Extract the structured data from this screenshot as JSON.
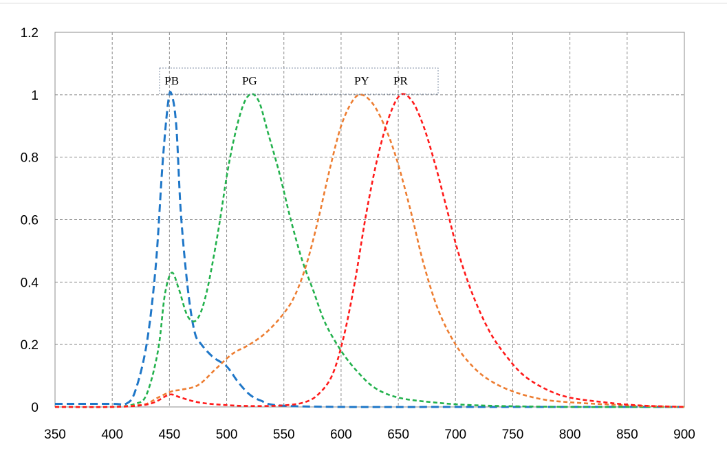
{
  "chart_data": {
    "type": "line",
    "title": "",
    "xlabel": "",
    "ylabel": "",
    "xlim": [
      350,
      900
    ],
    "ylim": [
      0,
      1.2
    ],
    "grid": true,
    "legend": "top (labels in a box above the peaks)",
    "x_ticks": [
      "350",
      "400",
      "450",
      "500",
      "550",
      "600",
      "650",
      "700",
      "750",
      "800",
      "850",
      "900"
    ],
    "y_ticks": [
      "0",
      "0.2",
      "0.4",
      "0.6",
      "0.8",
      "1",
      "1.2"
    ],
    "series": [
      {
        "name": "PB",
        "color": "#1f77c8",
        "points": [
          [
            350,
            0.01
          ],
          [
            400,
            0.01
          ],
          [
            412,
            0.01
          ],
          [
            420,
            0.05
          ],
          [
            430,
            0.2
          ],
          [
            438,
            0.45
          ],
          [
            444,
            0.78
          ],
          [
            449,
            0.98
          ],
          [
            452,
            1.0
          ],
          [
            456,
            0.9
          ],
          [
            460,
            0.62
          ],
          [
            466,
            0.38
          ],
          [
            472,
            0.24
          ],
          [
            478,
            0.2
          ],
          [
            488,
            0.16
          ],
          [
            500,
            0.13
          ],
          [
            510,
            0.08
          ],
          [
            520,
            0.04
          ],
          [
            530,
            0.02
          ],
          [
            545,
            0.005
          ],
          [
            600,
            0.0
          ],
          [
            700,
            0.0
          ],
          [
            800,
            0.0
          ],
          [
            900,
            0.0
          ]
        ]
      },
      {
        "name": "PG",
        "color": "#22b14c",
        "points": [
          [
            350,
            0.0
          ],
          [
            400,
            0.0
          ],
          [
            420,
            0.01
          ],
          [
            430,
            0.04
          ],
          [
            440,
            0.18
          ],
          [
            446,
            0.36
          ],
          [
            452,
            0.43
          ],
          [
            458,
            0.38
          ],
          [
            466,
            0.29
          ],
          [
            474,
            0.28
          ],
          [
            482,
            0.36
          ],
          [
            492,
            0.55
          ],
          [
            502,
            0.78
          ],
          [
            512,
            0.94
          ],
          [
            520,
            1.0
          ],
          [
            528,
            0.98
          ],
          [
            536,
            0.88
          ],
          [
            546,
            0.75
          ],
          [
            556,
            0.6
          ],
          [
            566,
            0.47
          ],
          [
            576,
            0.37
          ],
          [
            586,
            0.27
          ],
          [
            600,
            0.18
          ],
          [
            615,
            0.11
          ],
          [
            630,
            0.06
          ],
          [
            650,
            0.03
          ],
          [
            680,
            0.015
          ],
          [
            720,
            0.005
          ],
          [
            800,
            0.0
          ],
          [
            900,
            0.0
          ]
        ]
      },
      {
        "name": "PY",
        "color": "#ed7d31",
        "points": [
          [
            350,
            0.0
          ],
          [
            400,
            0.0
          ],
          [
            420,
            0.005
          ],
          [
            430,
            0.01
          ],
          [
            440,
            0.03
          ],
          [
            452,
            0.05
          ],
          [
            460,
            0.055
          ],
          [
            475,
            0.07
          ],
          [
            490,
            0.12
          ],
          [
            505,
            0.17
          ],
          [
            520,
            0.2
          ],
          [
            535,
            0.24
          ],
          [
            550,
            0.3
          ],
          [
            560,
            0.36
          ],
          [
            570,
            0.46
          ],
          [
            580,
            0.6
          ],
          [
            590,
            0.76
          ],
          [
            600,
            0.9
          ],
          [
            610,
            0.98
          ],
          [
            618,
            1.0
          ],
          [
            628,
            0.97
          ],
          [
            638,
            0.9
          ],
          [
            648,
            0.8
          ],
          [
            660,
            0.64
          ],
          [
            672,
            0.46
          ],
          [
            685,
            0.31
          ],
          [
            700,
            0.2
          ],
          [
            715,
            0.13
          ],
          [
            730,
            0.085
          ],
          [
            750,
            0.05
          ],
          [
            775,
            0.025
          ],
          [
            800,
            0.015
          ],
          [
            850,
            0.005
          ],
          [
            900,
            0.0
          ]
        ]
      },
      {
        "name": "PR",
        "color": "#ff1a1a",
        "points": [
          [
            350,
            0.0
          ],
          [
            400,
            0.0
          ],
          [
            425,
            0.005
          ],
          [
            437,
            0.015
          ],
          [
            447,
            0.035
          ],
          [
            452,
            0.04
          ],
          [
            460,
            0.03
          ],
          [
            475,
            0.015
          ],
          [
            495,
            0.007
          ],
          [
            520,
            0.003
          ],
          [
            550,
            0.005
          ],
          [
            568,
            0.015
          ],
          [
            580,
            0.04
          ],
          [
            592,
            0.1
          ],
          [
            602,
            0.22
          ],
          [
            612,
            0.4
          ],
          [
            622,
            0.62
          ],
          [
            632,
            0.8
          ],
          [
            642,
            0.93
          ],
          [
            652,
            1.0
          ],
          [
            662,
            0.98
          ],
          [
            672,
            0.9
          ],
          [
            682,
            0.78
          ],
          [
            692,
            0.64
          ],
          [
            702,
            0.5
          ],
          [
            715,
            0.36
          ],
          [
            730,
            0.24
          ],
          [
            745,
            0.16
          ],
          [
            760,
            0.1
          ],
          [
            780,
            0.055
          ],
          [
            800,
            0.03
          ],
          [
            830,
            0.015
          ],
          [
            860,
            0.005
          ],
          [
            900,
            0.0
          ]
        ]
      }
    ]
  }
}
